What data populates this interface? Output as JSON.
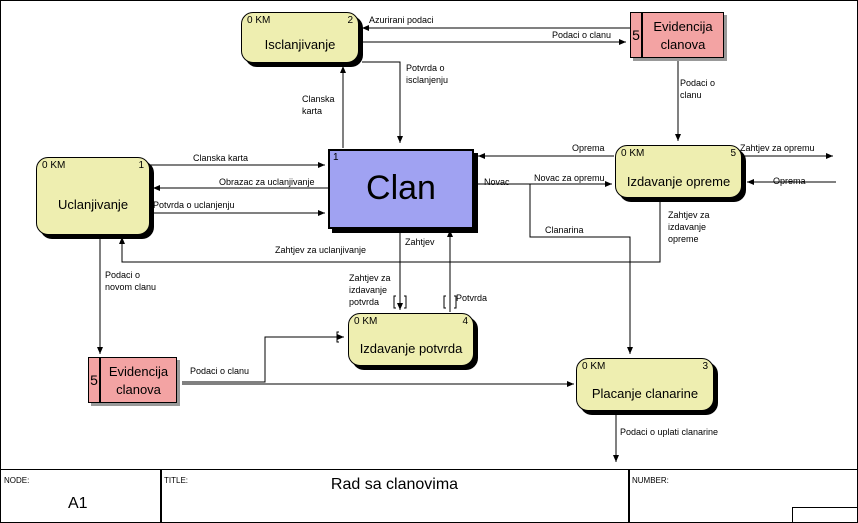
{
  "entity": {
    "num": "1",
    "name": "Clan"
  },
  "processes": {
    "isclanjivanje": {
      "km": "0 KM",
      "num": "2",
      "name": "Isclanjivanje"
    },
    "uclanjivanje": {
      "km": "0 KM",
      "num": "1",
      "name": "Uclanjivanje"
    },
    "izdavanje_opreme": {
      "km": "0 KM",
      "num": "5",
      "name": "Izdavanje opreme"
    },
    "izdavanje_potvrda": {
      "km": "0 KM",
      "num": "4",
      "name": "Izdavanje potvrda"
    },
    "placanje_clanarine": {
      "km": "0 KM",
      "num": "3",
      "name": "Placanje clanarine"
    }
  },
  "stores": {
    "top": {
      "num": "5",
      "line1": "Evidencija",
      "line2": "clanova"
    },
    "left": {
      "num": "5",
      "line1": "Evidencija",
      "line2": "clanova"
    }
  },
  "labels": {
    "azurirani_podaci": "Azurirani podaci",
    "podaci_o_clanu_top": "Podaci o clanu",
    "potvrda_o_isclanjenju_1": "Potvrda o",
    "potvrda_o_isclanjenju_2": "isclanjenju",
    "clanska_karta_v1": "Clanska",
    "clanska_karta_v2": "karta",
    "podaci_o_clanu_r1": "Podaci o",
    "podaci_o_clanu_r2": "clanu",
    "clanska_karta": "Clanska karta",
    "obrazac": "Obrazac za uclanjivanje",
    "potvrda_o_uclanjenju": "Potvrda o uclanjenju",
    "zahtjev_za_uclanjivanje": "Zahtjev za uclanjivanje",
    "oprema_mid": "Oprema",
    "novac": "Novac",
    "novac_za_opremu": "Novac za opremu",
    "zahtjev_za_opremu": "Zahtjev za opremu",
    "oprema_right": "Oprema",
    "zahtjev_za_opreme_1": "Zahtjev za",
    "zahtjev_za_opreme_2": "izdavanje",
    "zahtjev_za_opreme_3": "opreme",
    "clanarina": "Clanarina",
    "zahtjev": "Zahtjev",
    "zahtjev_potvrda_1": "Zahtjev za",
    "zahtjev_potvrda_2": "izdavanje",
    "zahtjev_potvrda_3": "potvrda",
    "potvrda": "Potvrda",
    "podaci_o_novom_1": "Podaci o",
    "podaci_o_novom_2": "novom clanu",
    "podaci_o_clanu_bottom": "Podaci o clanu",
    "podaci_o_uplati": "Podaci o uplati clanarine"
  },
  "footer": {
    "node_label": "NODE:",
    "node_value": "A1",
    "title_label": "TITLE:",
    "title_value": "Rad sa clanovima",
    "number_label": "NUMBER:"
  },
  "colors": {
    "process_fill": "#eeeeb0",
    "store_fill": "#f3a3a3",
    "entity_fill": "#a0a2f2"
  }
}
